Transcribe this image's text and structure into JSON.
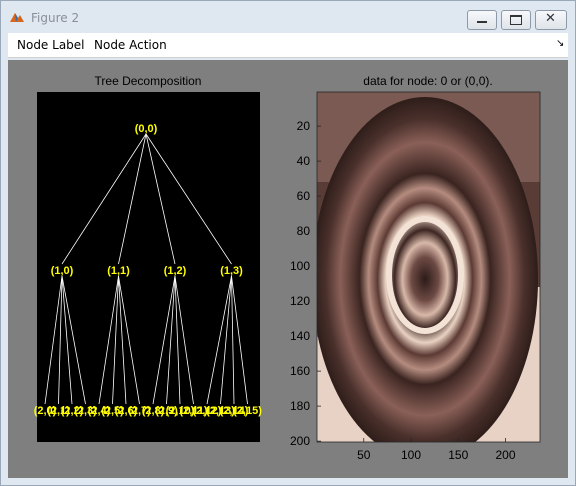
{
  "window": {
    "title": "Figure 2"
  },
  "menu": [
    "Node Label",
    "Node Action"
  ],
  "tree_axes": {
    "title": "Tree Decomposition",
    "nodes": [
      "(0,0)",
      "(1,0)",
      "(1,1)",
      "(1,2)",
      "(1,3)",
      "(2,0)",
      "(2,1)",
      "(2,2)",
      "(2,3)",
      "(2,4)",
      "(2,5)",
      "(2,6)",
      "(2,7)",
      "(2,8)",
      "(2,9)",
      "(2,10)",
      "(2,11)",
      "(2,12)",
      "(2,13)",
      "(2,14)",
      "(2,15)"
    ]
  },
  "image_axes": {
    "title": "data for node: 0 or (0,0).",
    "xlim": [
      0.5,
      236.5
    ],
    "ylim": [
      0.5,
      200.5
    ],
    "xticks": [
      50,
      100,
      150,
      200
    ],
    "yticks": [
      20,
      40,
      60,
      80,
      100,
      120,
      140,
      160,
      180,
      200
    ]
  }
}
